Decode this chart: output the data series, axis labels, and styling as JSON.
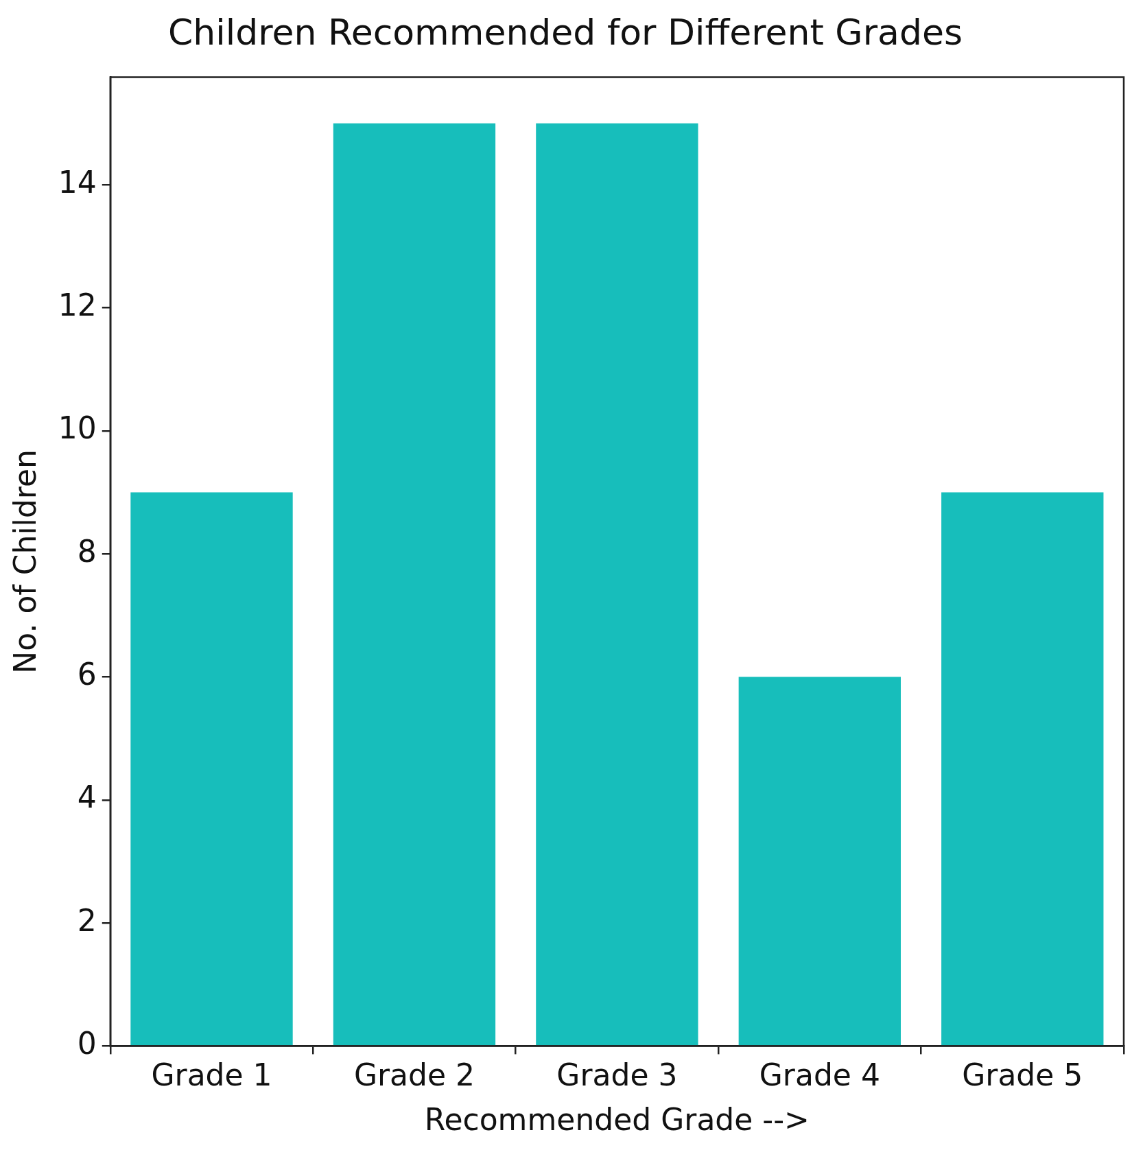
{
  "chart_data": {
    "type": "bar",
    "title": "Children Recommended for Different Grades",
    "xlabel": "Recommended Grade -->",
    "ylabel": "No. of Children",
    "categories": [
      "Grade 1",
      "Grade 2",
      "Grade 3",
      "Grade 4",
      "Grade 5"
    ],
    "values": [
      9,
      15,
      15,
      6,
      9
    ],
    "color": "#17bebb",
    "ylim": [
      0,
      15.75
    ],
    "yticks": [
      0,
      2,
      4,
      6,
      8,
      10,
      12,
      14
    ],
    "grid": false,
    "legend": false
  }
}
